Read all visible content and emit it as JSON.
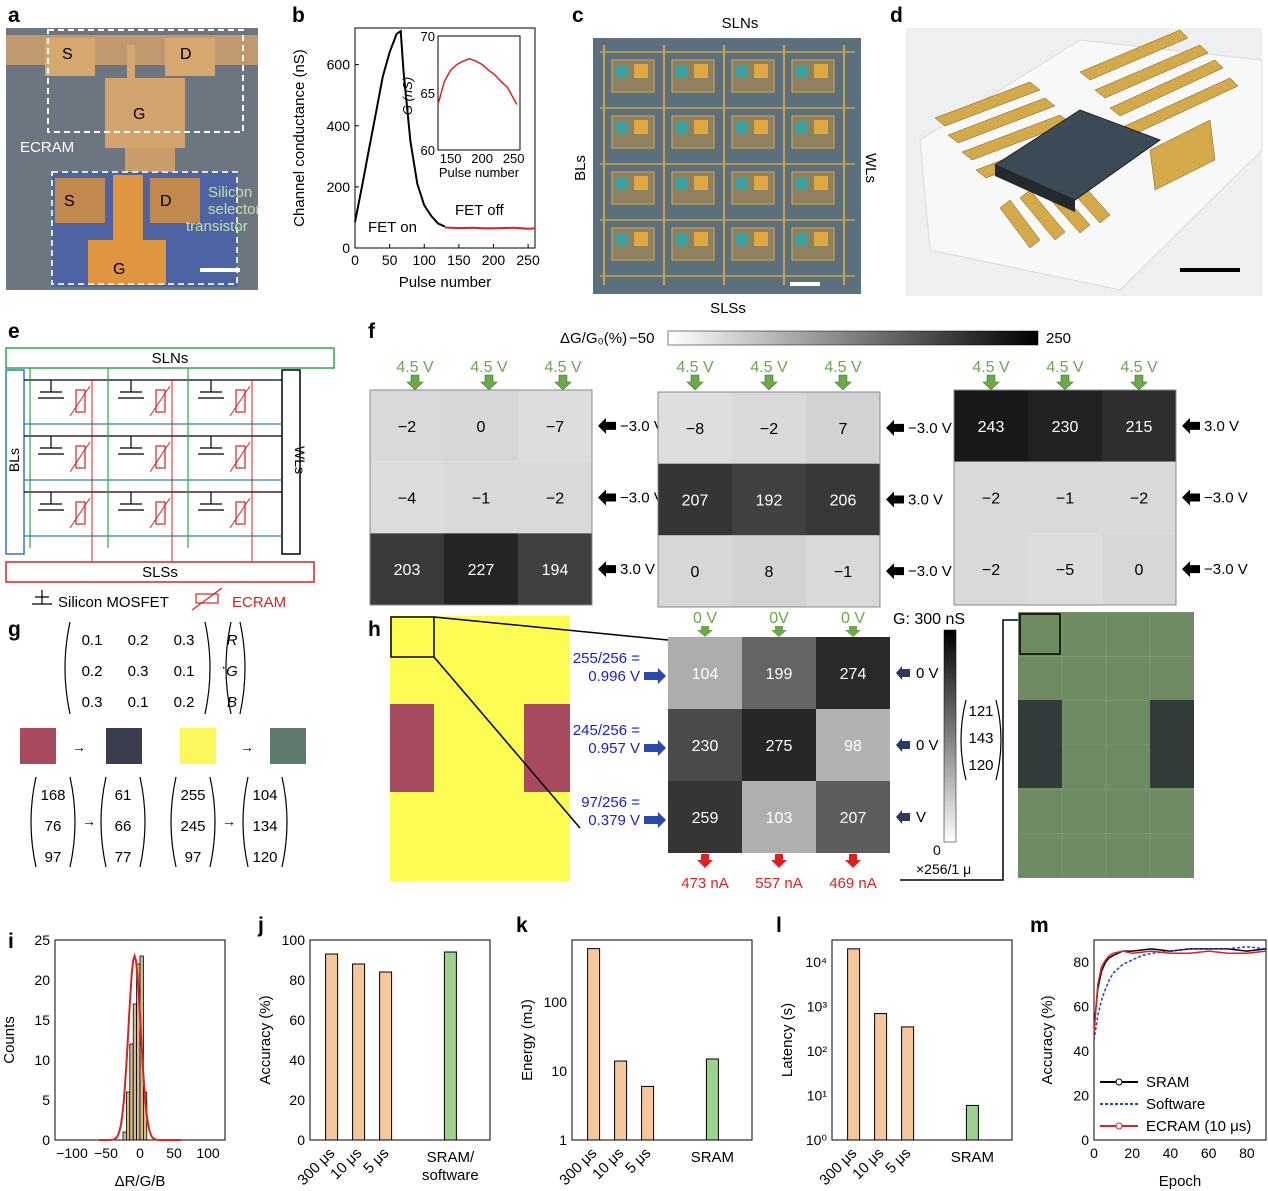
{
  "panel_letters": [
    "a",
    "b",
    "c",
    "d",
    "e",
    "f",
    "g",
    "h",
    "i",
    "j",
    "k",
    "l",
    "m"
  ],
  "panel_a": {
    "s1": "S",
    "d1": "D",
    "g1": "G",
    "s2": "S",
    "d2": "D",
    "g2": "G",
    "ecram": "ECRAM",
    "selector": [
      "Silicon",
      "selector",
      "transistor"
    ]
  },
  "chart_b": {
    "type": "line",
    "xlabel": "Pulse number",
    "ylabel": "Channel conductance (nS)",
    "xticks": [
      "0",
      "50",
      "100",
      "150",
      "200",
      "250"
    ],
    "yticks": [
      "0",
      "200",
      "400",
      "600"
    ],
    "fet_on": "FET on",
    "fet_off": "FET off",
    "xlim": [
      0,
      260
    ],
    "ylim": [
      0,
      720
    ],
    "on_x": [
      0,
      10,
      20,
      30,
      40,
      50,
      60,
      66,
      70,
      80,
      90,
      100,
      110,
      120,
      130
    ],
    "on_y": [
      85,
      200,
      320,
      440,
      560,
      640,
      700,
      710,
      580,
      350,
      210,
      140,
      105,
      80,
      70
    ],
    "off_x": [
      130,
      150,
      170,
      190,
      210,
      230,
      250,
      260
    ],
    "off_y": [
      67,
      65,
      66,
      64,
      65,
      66,
      63,
      64
    ],
    "inset": {
      "ylabel": "G (nS)",
      "xlabel": "Pulse number",
      "xticks": [
        "150",
        "200",
        "250"
      ],
      "yticks": [
        "60",
        "65",
        "70"
      ],
      "xlim": [
        130,
        260
      ],
      "ylim": [
        60,
        70
      ],
      "x": [
        130,
        140,
        150,
        160,
        170,
        180,
        190,
        200,
        210,
        220,
        230,
        240,
        250,
        255
      ],
      "y": [
        64,
        66,
        67,
        67.5,
        67.8,
        68,
        67.8,
        67.5,
        67,
        66.6,
        66,
        65.5,
        64.5,
        64
      ]
    }
  },
  "panel_c": {
    "top": "SLNs",
    "bottom": "SLSs",
    "left": "BLs",
    "right": "WLs"
  },
  "panel_e": {
    "top": "SLNs",
    "bottom": "SLSs",
    "left": "BLs",
    "right": "WLs",
    "legend_mosfet": "Silicon MOSFET",
    "legend_ecram": "ECRAM"
  },
  "panel_f": {
    "colorbar_label": "ΔG/G₀(%)",
    "colorbar_min": "−50",
    "colorbar_max": "250",
    "top_voltage": "4.5 V",
    "arrays": [
      {
        "values": [
          [
            "−2",
            "0",
            "−7"
          ],
          [
            "−4",
            "−1",
            "−2"
          ],
          [
            "203",
            "227",
            "194"
          ]
        ],
        "levels": [
          [
            0.16,
            0.17,
            0.15
          ],
          [
            0.15,
            0.16,
            0.16
          ],
          [
            0.84,
            0.93,
            0.81
          ]
        ],
        "right": [
          "−3.0 V",
          "−3.0 V",
          "3.0 V"
        ]
      },
      {
        "values": [
          [
            "−8",
            "−2",
            "7"
          ],
          [
            "207",
            "192",
            "206"
          ],
          [
            "0",
            "8",
            "−1"
          ]
        ],
        "levels": [
          [
            0.14,
            0.16,
            0.19
          ],
          [
            0.86,
            0.81,
            0.85
          ],
          [
            0.17,
            0.19,
            0.16
          ]
        ],
        "right": [
          "−3.0 V",
          "3.0 V",
          "−3.0 V"
        ]
      },
      {
        "values": [
          [
            "243",
            "230",
            "215"
          ],
          [
            "−2",
            "−1",
            "−2"
          ],
          [
            "−2",
            "−5",
            "0"
          ]
        ],
        "levels": [
          [
            0.98,
            0.94,
            0.89
          ],
          [
            0.16,
            0.16,
            0.16
          ],
          [
            0.16,
            0.15,
            0.17
          ]
        ],
        "right": [
          "3.0 V",
          "−3.0 V",
          "−3.0 V"
        ]
      }
    ]
  },
  "panel_g": {
    "matrix": [
      [
        "0.1",
        "0.2",
        "0.3"
      ],
      [
        "0.2",
        "0.3",
        "0.1"
      ],
      [
        "0.3",
        "0.1",
        "0.2"
      ]
    ],
    "rgb": [
      "R",
      "G",
      "B"
    ],
    "dot": "·",
    "arrow": "→",
    "colors": [
      "#a84a5e",
      "#3a3d4b",
      "#faf85a",
      "#5e7a6c"
    ],
    "vec_in1": [
      "168",
      "76",
      "97"
    ],
    "vec_out1": [
      "61",
      "66",
      "77"
    ],
    "vec_in2": [
      "255",
      "245",
      "97"
    ],
    "vec_out2": [
      "104",
      "134",
      "120"
    ]
  },
  "panel_h": {
    "top_voltages": [
      "0 V",
      "0V",
      "0 V"
    ],
    "g_label": "G: 300 nS",
    "inputs": [
      [
        "255/256 =",
        "0.996 V"
      ],
      [
        "245/256 =",
        "0.957 V"
      ],
      [
        "97/256 =",
        "0.379 V"
      ]
    ],
    "values": [
      [
        "104",
        "199",
        "274"
      ],
      [
        "230",
        "275",
        "98"
      ],
      [
        "259",
        "103",
        "207"
      ]
    ],
    "levels": [
      [
        0.35,
        0.66,
        0.91
      ],
      [
        0.77,
        0.92,
        0.33
      ],
      [
        0.86,
        0.34,
        0.69
      ]
    ],
    "right": [
      "0 V",
      "0 V",
      "V"
    ],
    "currents": [
      "473 nA",
      "557 nA",
      "469 nA"
    ],
    "colorbar_min": "0",
    "scale": "×256/1 μ",
    "vec": [
      "121",
      "143",
      "120"
    ],
    "colors": {
      "yellow": "#fdfc52",
      "maroon": "#a84a5e",
      "green": "#6f8b64",
      "dark": "#333a3a"
    }
  },
  "chart_i": {
    "type": "bar",
    "xlabel": "ΔR/G/B",
    "ylabel": "Counts",
    "xticks": [
      "−100",
      "−50",
      "0",
      "50",
      "100"
    ],
    "yticks": [
      "0",
      "5",
      "10",
      "15",
      "20",
      "25"
    ],
    "xlim": [
      -125,
      125
    ],
    "ylim": [
      0,
      25
    ],
    "bin_x": [
      -25,
      -20,
      -15,
      -10,
      -5,
      0,
      5
    ],
    "bin_y": [
      1,
      6,
      12,
      17,
      22,
      23,
      6
    ]
  },
  "chart_j": {
    "type": "bar",
    "ylabel": "Accuracy (%)",
    "categories": [
      "300 μs",
      "10 μs",
      "5 μs",
      "SRAM/ software"
    ],
    "values": [
      93,
      88,
      84,
      94
    ],
    "yticks": [
      "0",
      "20",
      "40",
      "60",
      "80",
      "100"
    ],
    "ylim": [
      0,
      100
    ]
  },
  "chart_k": {
    "type": "bar",
    "ylabel": "Energy (mJ)",
    "categories": [
      "300 μs",
      "10 μs",
      "5 μs",
      "SRAM"
    ],
    "values": [
      600,
      14,
      6,
      15
    ],
    "yticks": [
      "1",
      "10",
      "100"
    ],
    "log": true
  },
  "chart_l": {
    "type": "bar",
    "ylabel": "Latency (s)",
    "categories": [
      "300 μs",
      "10 μs",
      "5 μs",
      "SRAM"
    ],
    "values": [
      20000,
      700,
      350,
      6
    ],
    "yticks": [
      "10⁰",
      "10¹",
      "10²",
      "10³",
      "10⁴"
    ],
    "log": true
  },
  "chart_m": {
    "type": "line",
    "xlabel": "Epoch",
    "ylabel": "Accuracy (%)",
    "xticks": [
      "0",
      "20",
      "40",
      "60",
      "80"
    ],
    "yticks": [
      "0",
      "20",
      "40",
      "60",
      "80"
    ],
    "xlim": [
      0,
      90
    ],
    "ylim": [
      0,
      90
    ],
    "series": [
      {
        "name": "SRAM",
        "x": [
          0,
          2,
          4,
          6,
          8,
          10,
          15,
          20,
          30,
          40,
          50,
          60,
          70,
          80,
          90
        ],
        "y": [
          50,
          68,
          76,
          80,
          82,
          83,
          85,
          85,
          86,
          85,
          86,
          86,
          86,
          85,
          86
        ]
      },
      {
        "name": "Software",
        "x": [
          0,
          2,
          4,
          6,
          8,
          10,
          15,
          20,
          25,
          30,
          40,
          50,
          60,
          70,
          80,
          90
        ],
        "y": [
          45,
          56,
          63,
          68,
          72,
          75,
          79,
          81,
          83,
          84,
          85,
          86,
          86,
          86,
          87,
          86
        ]
      },
      {
        "name": "ECRAM (10 μs)",
        "x": [
          0,
          2,
          4,
          6,
          8,
          10,
          15,
          20,
          30,
          40,
          50,
          60,
          70,
          80,
          90
        ],
        "y": [
          48,
          70,
          78,
          81,
          83,
          84,
          85,
          84,
          85,
          84,
          84,
          85,
          84,
          84,
          85
        ]
      }
    ],
    "colors": [
      "#000000",
      "#1f3fd6",
      "#e02020"
    ]
  }
}
